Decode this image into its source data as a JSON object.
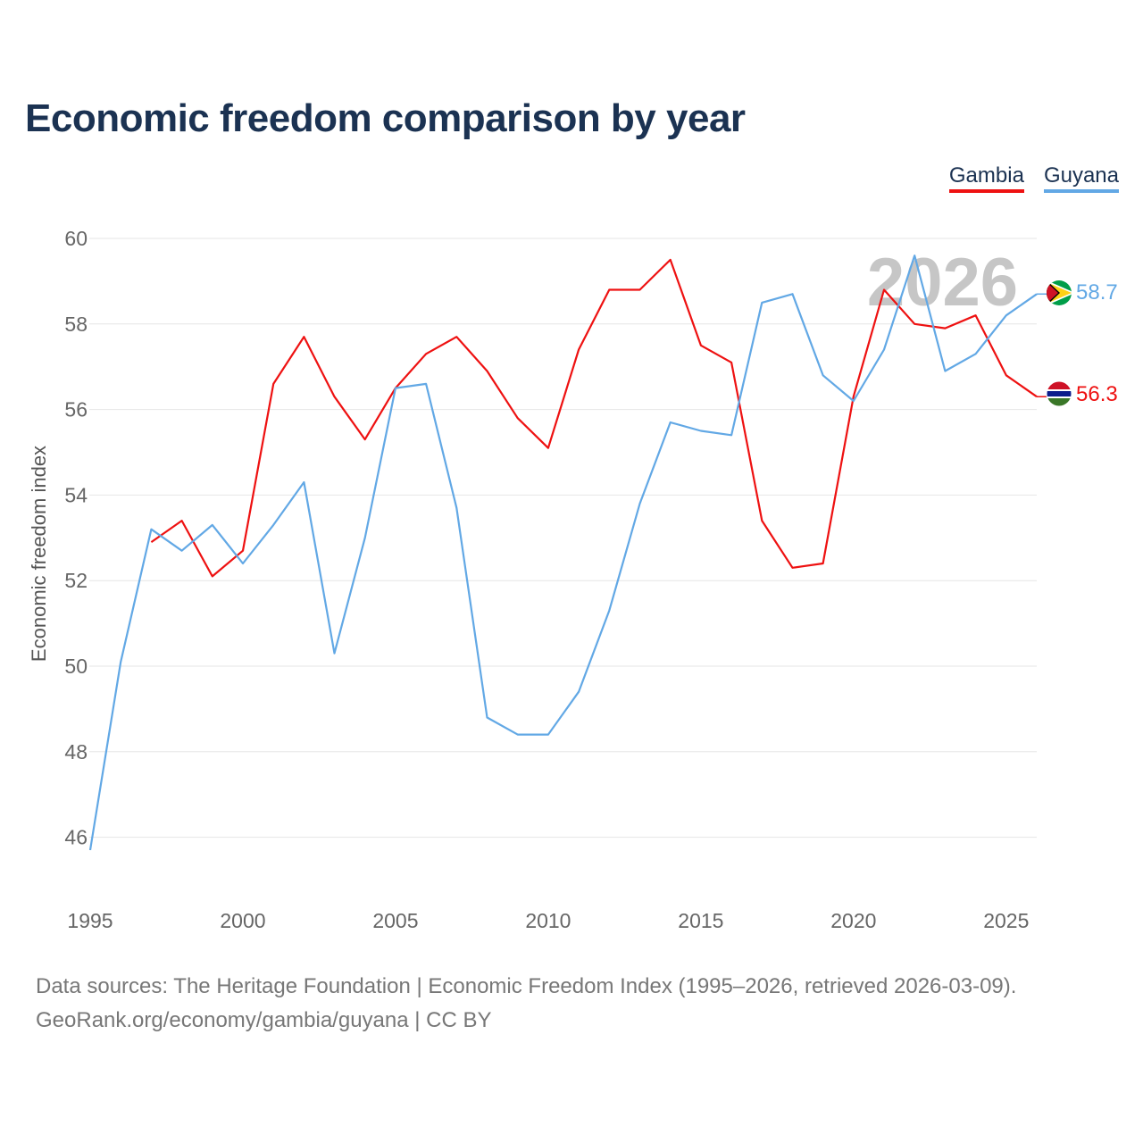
{
  "chart_data": {
    "type": "line",
    "title": "Economic freedom comparison by year",
    "ylabel": "Economic freedom index",
    "xlabel": "",
    "xlim": [
      1995,
      2026
    ],
    "ylim": [
      45,
      60.5
    ],
    "x_ticks": [
      1995,
      2000,
      2005,
      2010,
      2015,
      2020,
      2025
    ],
    "y_ticks": [
      46,
      48,
      50,
      52,
      54,
      56,
      58,
      60
    ],
    "year_watermark": "2026",
    "grid": true,
    "legend_position": "top-right",
    "series": [
      {
        "name": "Gambia",
        "color": "#ee1111",
        "end_label": "56.3",
        "flag": "gambia-flag-icon",
        "points": [
          [
            1997,
            52.9
          ],
          [
            1998,
            53.4
          ],
          [
            1999,
            52.1
          ],
          [
            2000,
            52.7
          ],
          [
            2001,
            56.6
          ],
          [
            2002,
            57.7
          ],
          [
            2003,
            56.3
          ],
          [
            2004,
            55.3
          ],
          [
            2005,
            56.5
          ],
          [
            2006,
            57.3
          ],
          [
            2007,
            57.7
          ],
          [
            2008,
            56.9
          ],
          [
            2009,
            55.8
          ],
          [
            2010,
            55.1
          ],
          [
            2011,
            57.4
          ],
          [
            2012,
            58.8
          ],
          [
            2013,
            58.8
          ],
          [
            2014,
            59.5
          ],
          [
            2015,
            57.5
          ],
          [
            2016,
            57.1
          ],
          [
            2017,
            53.4
          ],
          [
            2018,
            52.3
          ],
          [
            2019,
            52.4
          ],
          [
            2020,
            56.3
          ],
          [
            2021,
            58.8
          ],
          [
            2022,
            58.0
          ],
          [
            2023,
            57.9
          ],
          [
            2024,
            58.2
          ],
          [
            2025,
            56.8
          ],
          [
            2026,
            56.3
          ]
        ]
      },
      {
        "name": "Guyana",
        "color": "#62a8e5",
        "end_label": "58.7",
        "flag": "guyana-flag-icon",
        "points": [
          [
            1995,
            45.7
          ],
          [
            1996,
            50.1
          ],
          [
            1997,
            53.2
          ],
          [
            1998,
            52.7
          ],
          [
            1999,
            53.3
          ],
          [
            2000,
            52.4
          ],
          [
            2001,
            53.3
          ],
          [
            2002,
            54.3
          ],
          [
            2003,
            50.3
          ],
          [
            2004,
            53.0
          ],
          [
            2005,
            56.5
          ],
          [
            2006,
            56.6
          ],
          [
            2007,
            53.7
          ],
          [
            2008,
            48.8
          ],
          [
            2009,
            48.4
          ],
          [
            2010,
            48.4
          ],
          [
            2011,
            49.4
          ],
          [
            2012,
            51.3
          ],
          [
            2013,
            53.8
          ],
          [
            2014,
            55.7
          ],
          [
            2015,
            55.5
          ],
          [
            2016,
            55.4
          ],
          [
            2017,
            58.5
          ],
          [
            2018,
            58.7
          ],
          [
            2019,
            56.8
          ],
          [
            2020,
            56.2
          ],
          [
            2021,
            57.4
          ],
          [
            2022,
            59.6
          ],
          [
            2023,
            56.9
          ],
          [
            2024,
            57.3
          ],
          [
            2025,
            58.2
          ],
          [
            2026,
            58.7
          ]
        ]
      }
    ]
  },
  "footer": {
    "line1": "Data sources: The Heritage Foundation | Economic Freedom Index (1995–2026, retrieved 2026-03-09).",
    "line2": "GeoRank.org/economy/gambia/guyana | CC BY"
  }
}
